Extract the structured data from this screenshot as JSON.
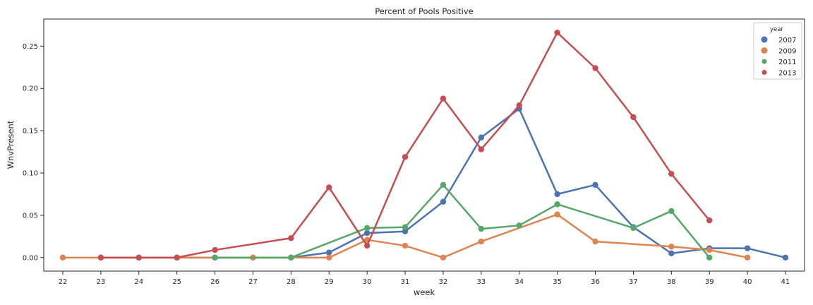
{
  "chart_data": {
    "type": "line",
    "title": "Percent of Pools Positive",
    "xlabel": "week",
    "ylabel": "WnvPresent",
    "categories": [
      "22",
      "23",
      "24",
      "25",
      "26",
      "27",
      "28",
      "29",
      "30",
      "31",
      "32",
      "33",
      "34",
      "35",
      "36",
      "37",
      "38",
      "39",
      "40",
      "41"
    ],
    "ylim": [
      -0.016,
      0.282
    ],
    "yticks": [
      "0.00",
      "0.05",
      "0.10",
      "0.15",
      "0.20",
      "0.25"
    ],
    "ytick_values": [
      0,
      0.05,
      0.1,
      0.15,
      0.2,
      0.25
    ],
    "grid": false,
    "legend": {
      "title": "year",
      "position": "top-right"
    },
    "series": [
      {
        "name": "2007",
        "color": "#4c72b0",
        "points": [
          [
            "23",
            0.0
          ],
          [
            "24",
            0.0
          ],
          [
            "25",
            0.0
          ],
          [
            "26",
            0.0
          ],
          [
            "27",
            0.0
          ],
          [
            "28",
            0.0
          ],
          [
            "29",
            0.006
          ],
          [
            "30",
            0.029
          ],
          [
            "31",
            0.031
          ],
          [
            "32",
            0.066
          ],
          [
            "33",
            0.142
          ],
          [
            "34",
            0.176
          ],
          [
            "35",
            0.075
          ],
          [
            "36",
            0.086
          ],
          [
            "37",
            0.036
          ],
          [
            "38",
            0.005
          ],
          [
            "39",
            0.011
          ],
          [
            "40",
            0.011
          ],
          [
            "41",
            0.0
          ]
        ]
      },
      {
        "name": "2009",
        "color": "#dd8452",
        "points": [
          [
            "22",
            0.0
          ],
          [
            "23",
            0.0
          ],
          [
            "24",
            0.0
          ],
          [
            "25",
            0.0
          ],
          [
            "26",
            0.0
          ],
          [
            "27",
            0.0
          ],
          [
            "28",
            0.0
          ],
          [
            "29",
            0.0
          ],
          [
            "30",
            0.021
          ],
          [
            "31",
            0.014
          ],
          [
            "32",
            0.0
          ],
          [
            "33",
            0.019
          ],
          [
            "35",
            0.051
          ],
          [
            "36",
            0.019
          ],
          [
            "38",
            0.013
          ],
          [
            "39",
            0.009
          ],
          [
            "40",
            0.0
          ]
        ]
      },
      {
        "name": "2011",
        "color": "#55a868",
        "points": [
          [
            "26",
            0.0
          ],
          [
            "28",
            0.0
          ],
          [
            "30",
            0.035
          ],
          [
            "31",
            0.036
          ],
          [
            "32",
            0.086
          ],
          [
            "33",
            0.034
          ],
          [
            "34",
            0.038
          ],
          [
            "35",
            0.063
          ],
          [
            "37",
            0.035
          ],
          [
            "38",
            0.055
          ],
          [
            "39",
            0.0
          ]
        ]
      },
      {
        "name": "2013",
        "color": "#c44e52",
        "points": [
          [
            "23",
            0.0
          ],
          [
            "24",
            0.0
          ],
          [
            "25",
            0.0
          ],
          [
            "26",
            0.009
          ],
          [
            "28",
            0.023
          ],
          [
            "29",
            0.083
          ],
          [
            "30",
            0.014
          ],
          [
            "31",
            0.119
          ],
          [
            "32",
            0.188
          ],
          [
            "33",
            0.128
          ],
          [
            "34",
            0.18
          ],
          [
            "35",
            0.266
          ],
          [
            "36",
            0.224
          ],
          [
            "37",
            0.166
          ],
          [
            "38",
            0.099
          ],
          [
            "39",
            0.044
          ]
        ]
      }
    ]
  }
}
